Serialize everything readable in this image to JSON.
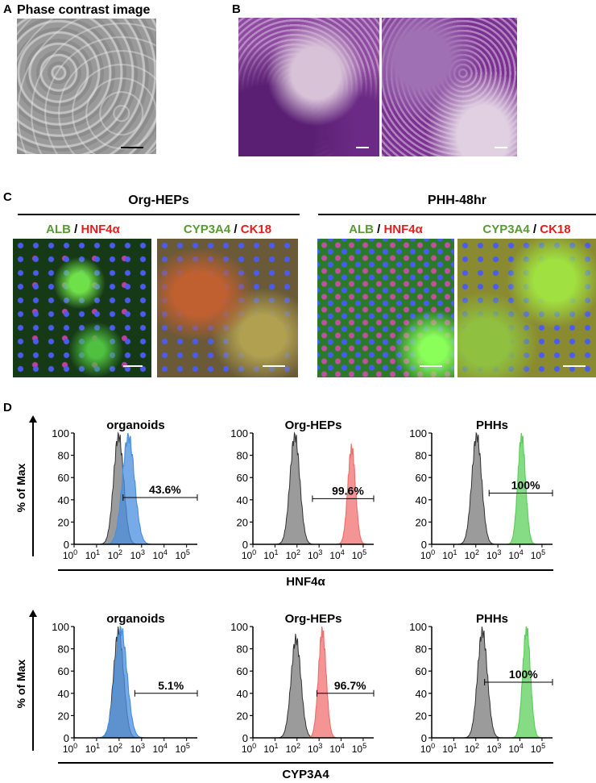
{
  "panel_labels": {
    "A": "A",
    "B": "B",
    "C": "C",
    "D": "D"
  },
  "panel_a": {
    "title": "Phase contrast image"
  },
  "panel_b": {
    "titles": [
      "Org-HEPs",
      "PHH-48hr"
    ]
  },
  "panel_c": {
    "groups": [
      "Org-HEPs",
      "PHH-48hr"
    ],
    "stain1": {
      "a": "ALB",
      "sep": " / ",
      "b": "HNF4α"
    },
    "stain2": {
      "a": "CYP3A4",
      "sep": " / ",
      "b": "CK18"
    }
  },
  "panel_d": {
    "ylabel": "% of Max",
    "row_labels": [
      "HNF4α",
      "CYP3A4"
    ],
    "plot_titles": [
      "organoids",
      "Org-HEPs",
      "PHHs"
    ],
    "yticks": [
      "0",
      "20",
      "40",
      "60",
      "80",
      "100"
    ],
    "xticks": [
      {
        "base": "10",
        "exp": "0"
      },
      {
        "base": "10",
        "exp": "1"
      },
      {
        "base": "10",
        "exp": "2"
      },
      {
        "base": "10",
        "exp": "3"
      },
      {
        "base": "10",
        "exp": "4"
      },
      {
        "base": "10",
        "exp": "5"
      }
    ]
  },
  "chart_data": [
    {
      "type": "area",
      "title": "organoids",
      "marker": "HNF4α",
      "ylabel": "% of Max",
      "x_scale": "log",
      "xlim": [
        1,
        300000
      ],
      "ylim": [
        0,
        100
      ],
      "control": {
        "color": "#8a8a8a",
        "peak_x": 95,
        "peak_y": 98
      },
      "sample": {
        "color": "#4a8fe0",
        "peak_x": 260,
        "peak_y": 97
      },
      "gate": {
        "from": 150,
        "to": 200000,
        "y": 42
      },
      "gate_label": "43.6%"
    },
    {
      "type": "area",
      "title": "Org-HEPs",
      "marker": "HNF4α",
      "ylabel": "% of Max",
      "x_scale": "log",
      "xlim": [
        1,
        300000
      ],
      "ylim": [
        0,
        100
      ],
      "control": {
        "color": "#8a8a8a",
        "peak_x": 80,
        "peak_y": 98
      },
      "sample": {
        "color": "#f07070",
        "peak_x": 30000,
        "peak_y": 86
      },
      "gate": {
        "from": 500,
        "to": 200000,
        "y": 41
      },
      "gate_label": "99.6%"
    },
    {
      "type": "area",
      "title": "PHHs",
      "marker": "HNF4α",
      "ylabel": "% of Max",
      "x_scale": "log",
      "xlim": [
        1,
        300000
      ],
      "ylim": [
        0,
        100
      ],
      "control": {
        "color": "#8a8a8a",
        "peak_x": 110,
        "peak_y": 98
      },
      "sample": {
        "color": "#5cd05c",
        "peak_x": 12000,
        "peak_y": 97
      },
      "gate": {
        "from": 400,
        "to": 200000,
        "y": 46
      },
      "gate_label": "100%"
    },
    {
      "type": "area",
      "title": "organoids",
      "marker": "CYP3A4",
      "ylabel": "% of Max",
      "x_scale": "log",
      "xlim": [
        1,
        300000
      ],
      "ylim": [
        0,
        100
      ],
      "control": {
        "color": "#8a8a8a",
        "peak_x": 95,
        "peak_y": 96
      },
      "sample": {
        "color": "#4a8fe0",
        "peak_x": 120,
        "peak_y": 98
      },
      "gate": {
        "from": 500,
        "to": 200000,
        "y": 40
      },
      "gate_label": "5.1%"
    },
    {
      "type": "area",
      "title": "Org-HEPs",
      "marker": "CYP3A4",
      "ylabel": "% of Max",
      "x_scale": "log",
      "xlim": [
        1,
        300000
      ],
      "ylim": [
        0,
        100
      ],
      "control": {
        "color": "#8a8a8a",
        "peak_x": 90,
        "peak_y": 89
      },
      "sample": {
        "color": "#f07070",
        "peak_x": 1400,
        "peak_y": 96
      },
      "gate": {
        "from": 800,
        "to": 200000,
        "y": 40
      },
      "gate_label": "96.7%"
    },
    {
      "type": "area",
      "title": "PHHs",
      "marker": "CYP3A4",
      "ylabel": "% of Max",
      "x_scale": "log",
      "xlim": [
        1,
        300000
      ],
      "ylim": [
        0,
        100
      ],
      "control": {
        "color": "#8a8a8a",
        "peak_x": 200,
        "peak_y": 96
      },
      "sample": {
        "color": "#5cd05c",
        "peak_x": 20000,
        "peak_y": 98
      },
      "gate": {
        "from": 250,
        "to": 200000,
        "y": 50
      },
      "gate_label": "100%"
    }
  ]
}
